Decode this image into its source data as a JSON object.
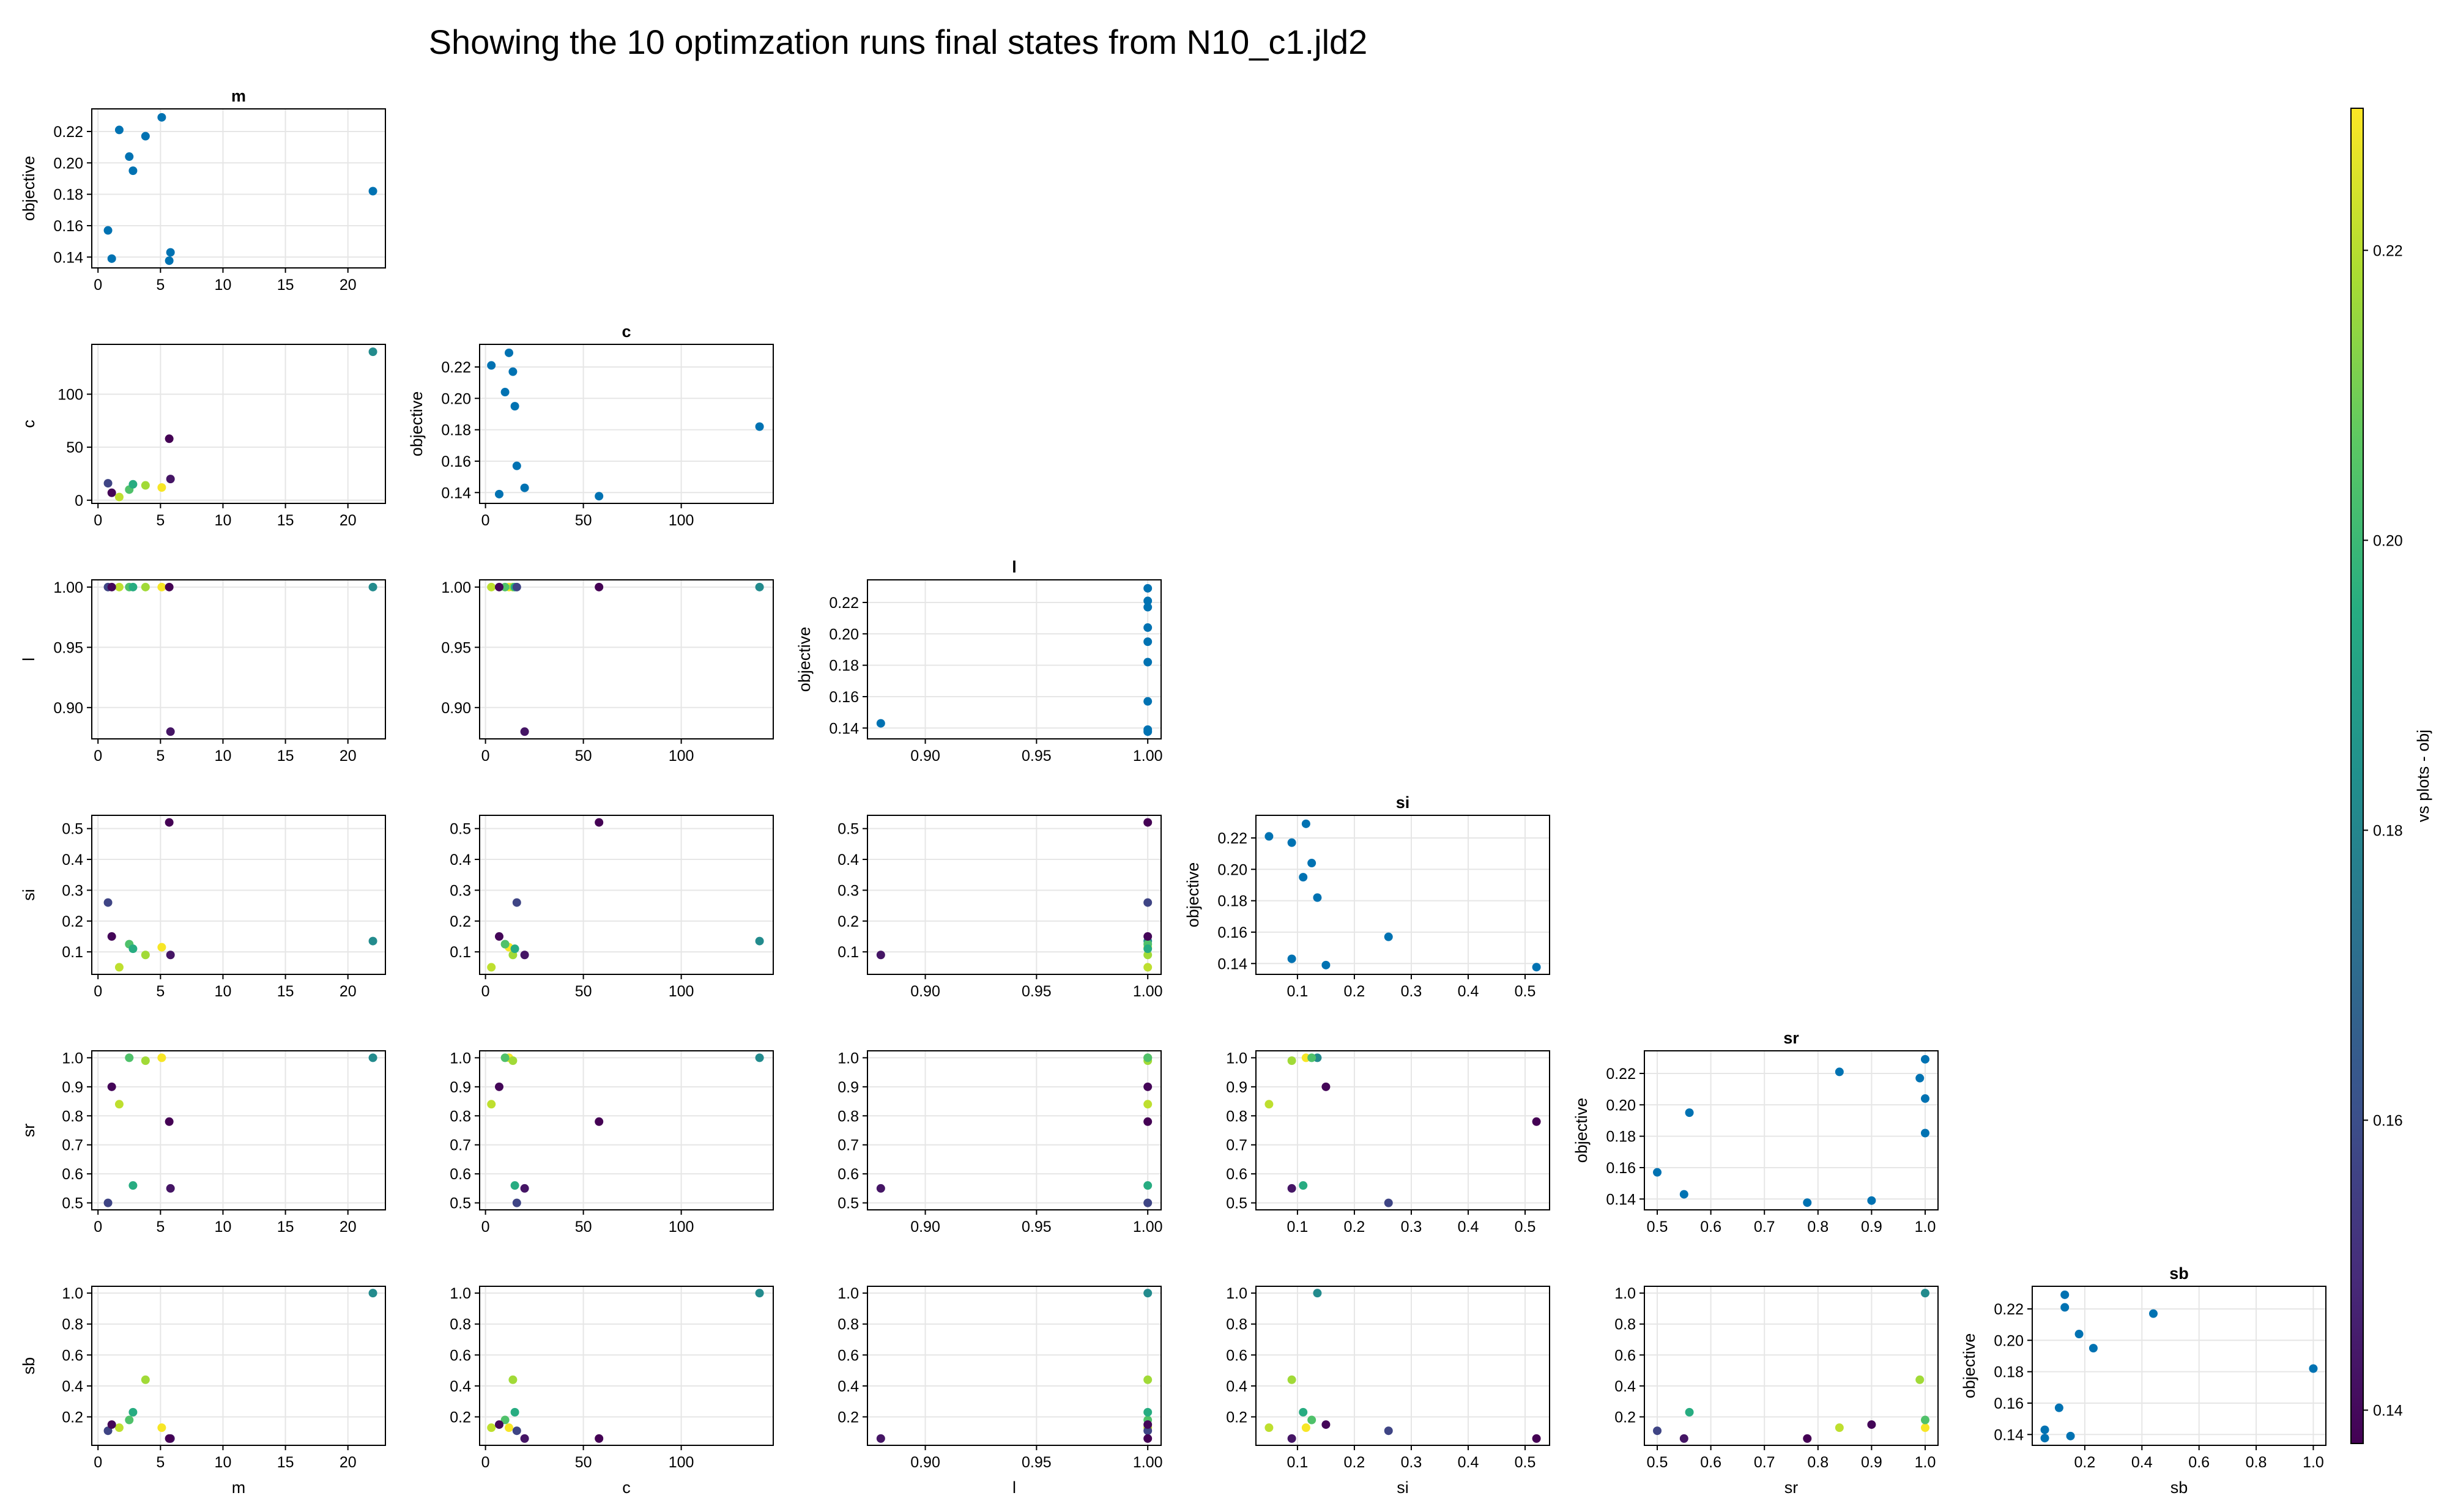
{
  "figure": {
    "title": "Showing the 10 optimzation runs final states from N10_c1.jld2"
  },
  "colorbar": {
    "label": "vs plots - obj",
    "range": [
      0.1377,
      0.2298
    ],
    "ticks": [
      0.14,
      0.16,
      0.18,
      0.2,
      0.22
    ],
    "tick_labels": [
      "0.14",
      "0.16",
      "0.18",
      "0.20",
      "0.22"
    ],
    "colormap": "viridis"
  },
  "chart_data": {
    "type": "scatter",
    "layout": "corner-pairplot",
    "variables": [
      "m",
      "c",
      "l",
      "si",
      "sr",
      "sb"
    ],
    "diagonal_ylabel": "objective",
    "diagonal_color": "#0072b2",
    "runs": [
      {
        "m": 22.0,
        "c": 140.0,
        "l": 1.0,
        "si": 0.135,
        "sr": 1.0,
        "sb": 1.0,
        "objective": 0.182
      },
      {
        "m": 5.1,
        "c": 12.0,
        "l": 1.0,
        "si": 0.115,
        "sr": 1.0,
        "sb": 0.13,
        "objective": 0.229
      },
      {
        "m": 1.7,
        "c": 3.0,
        "l": 1.0,
        "si": 0.05,
        "sr": 0.84,
        "sb": 0.13,
        "objective": 0.221
      },
      {
        "m": 3.8,
        "c": 14.0,
        "l": 1.0,
        "si": 0.09,
        "sr": 0.99,
        "sb": 0.44,
        "objective": 0.217
      },
      {
        "m": 2.5,
        "c": 10.0,
        "l": 1.0,
        "si": 0.125,
        "sr": 1.0,
        "sb": 0.18,
        "objective": 0.204
      },
      {
        "m": 2.8,
        "c": 15.0,
        "l": 1.0,
        "si": 0.11,
        "sr": 0.56,
        "sb": 0.23,
        "objective": 0.195
      },
      {
        "m": 0.8,
        "c": 16.0,
        "l": 1.0,
        "si": 0.26,
        "sr": 0.5,
        "sb": 0.11,
        "objective": 0.157
      },
      {
        "m": 5.8,
        "c": 20.0,
        "l": 0.88,
        "si": 0.09,
        "sr": 0.55,
        "sb": 0.06,
        "objective": 0.143
      },
      {
        "m": 1.1,
        "c": 7.0,
        "l": 1.0,
        "si": 0.15,
        "sr": 0.9,
        "sb": 0.15,
        "objective": 0.139
      },
      {
        "m": 5.7,
        "c": 58.0,
        "l": 1.0,
        "si": 0.52,
        "sr": 0.78,
        "sb": 0.06,
        "objective": 0.1377
      }
    ],
    "axes": {
      "m": {
        "label": "m",
        "lim": [
          -0.5,
          23
        ],
        "ticks": [
          0,
          5,
          10,
          15,
          20
        ],
        "tick_labels": [
          "0",
          "5",
          "10",
          "15",
          "20"
        ]
      },
      "c": {
        "label": "c",
        "lim": [
          -3,
          147
        ],
        "ticks": [
          0,
          50,
          100
        ],
        "tick_labels": [
          "0",
          "50",
          "100"
        ]
      },
      "l": {
        "label": "l",
        "lim": [
          0.874,
          1.006
        ],
        "ticks": [
          0.9,
          0.95,
          1.0
        ],
        "tick_labels": [
          "0.90",
          "0.95",
          "1.00"
        ]
      },
      "si": {
        "label": "si",
        "lim": [
          0.027,
          0.543
        ],
        "ticks": [
          0.1,
          0.2,
          0.3,
          0.4,
          0.5
        ],
        "tick_labels": [
          "0.1",
          "0.2",
          "0.3",
          "0.4",
          "0.5"
        ]
      },
      "sr": {
        "label": "sr",
        "lim": [
          0.476,
          1.024
        ],
        "ticks": [
          0.5,
          0.6,
          0.7,
          0.8,
          0.9,
          1.0
        ],
        "tick_labels": [
          "0.5",
          "0.6",
          "0.7",
          "0.8",
          "0.9",
          "1.0"
        ]
      },
      "sb": {
        "label": "sb",
        "lim": [
          0.016,
          1.044
        ],
        "ticks": [
          0.2,
          0.4,
          0.6,
          0.8,
          1.0
        ],
        "tick_labels": [
          "0.2",
          "0.4",
          "0.6",
          "0.8",
          "1.0"
        ]
      },
      "objective": {
        "label": "objective",
        "lim": [
          0.1331,
          0.2344
        ],
        "ticks": [
          0.14,
          0.16,
          0.18,
          0.2,
          0.22
        ],
        "tick_labels": [
          "0.14",
          "0.16",
          "0.18",
          "0.20",
          "0.22"
        ]
      }
    },
    "grid": true,
    "legend": "none"
  }
}
